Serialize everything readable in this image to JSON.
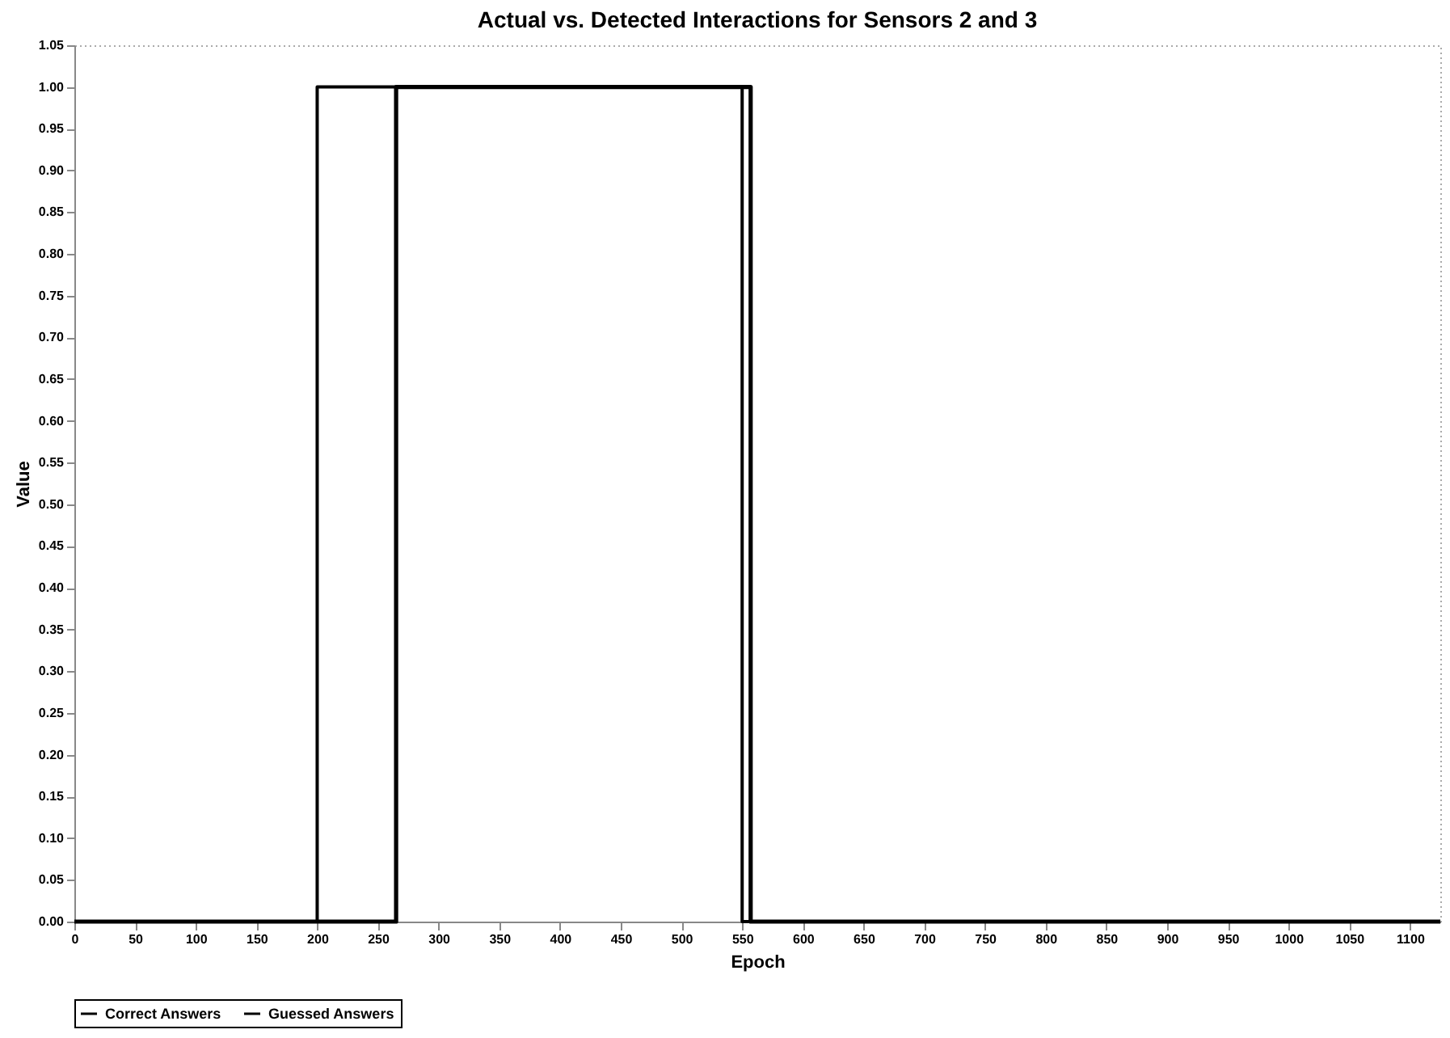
{
  "chart_data": {
    "type": "step",
    "title": "Actual vs. Detected Interactions for Sensors 2 and 3",
    "xlabel": "Epoch",
    "ylabel": "Value",
    "series": [
      {
        "name": "Correct Answers",
        "color": "#000000",
        "x": [
          0,
          200,
          550,
          1125
        ],
        "values": [
          0,
          1,
          0,
          0
        ]
      },
      {
        "name": "Guessed Answers",
        "color": "#000000",
        "x": [
          0,
          265,
          557,
          1125
        ],
        "values": [
          0,
          1,
          0,
          0
        ]
      }
    ],
    "xlim": [
      0,
      1125
    ],
    "xticks": [
      0,
      50,
      100,
      150,
      200,
      250,
      300,
      350,
      400,
      450,
      500,
      550,
      600,
      650,
      700,
      750,
      800,
      850,
      900,
      950,
      1000,
      1050,
      1100
    ],
    "ylim": [
      0,
      1.05
    ],
    "yticks": [
      {
        "value": 0,
        "label": "0.00"
      },
      {
        "value": 0.05,
        "label": "0.05"
      },
      {
        "value": 0.1,
        "label": "0.10"
      },
      {
        "value": 0.15,
        "label": "0.15"
      },
      {
        "value": 0.2,
        "label": "0.20"
      },
      {
        "value": 0.25,
        "label": "0.25"
      },
      {
        "value": 0.3,
        "label": "0.30"
      },
      {
        "value": 0.35,
        "label": "0.35"
      },
      {
        "value": 0.4,
        "label": "0.40"
      },
      {
        "value": 0.45,
        "label": "0.45"
      },
      {
        "value": 0.5,
        "label": "0.50"
      },
      {
        "value": 0.55,
        "label": "0.55"
      },
      {
        "value": 0.6,
        "label": "0.60"
      },
      {
        "value": 0.65,
        "label": "0.65"
      },
      {
        "value": 0.7,
        "label": "0.70"
      },
      {
        "value": 0.75,
        "label": "0.75"
      },
      {
        "value": 0.8,
        "label": "0.80"
      },
      {
        "value": 0.85,
        "label": "0.85"
      },
      {
        "value": 0.9,
        "label": "0.90"
      },
      {
        "value": 0.95,
        "label": "0.95"
      },
      {
        "value": 1,
        "label": "1.00"
      },
      {
        "value": 1.05,
        "label": "1.05"
      }
    ],
    "legend": "bottom",
    "grid": false
  }
}
